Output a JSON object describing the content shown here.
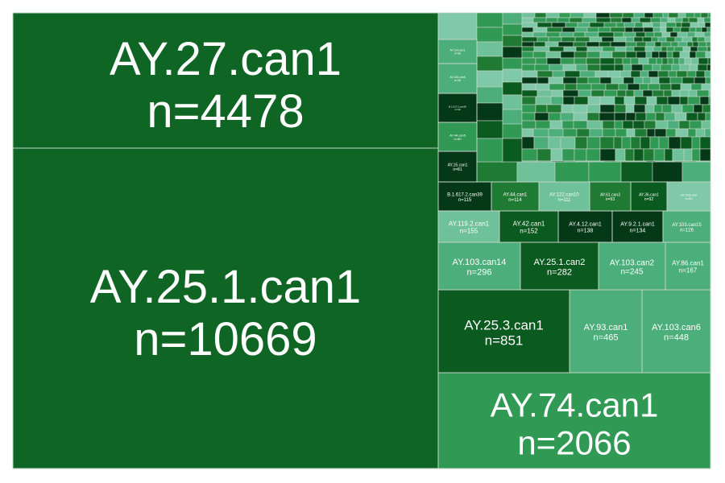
{
  "chart_data": {
    "type": "treemap",
    "colors": {
      "darkest": "#053817",
      "dark": "#0b5a1f",
      "deep": "#0f6524",
      "mid": "#1f7a33",
      "medium": "#309a55",
      "light": "#4cae7a",
      "lighter": "#6ec198",
      "lightest": "#7fc9a8"
    },
    "tiles": [
      {
        "id": "ay-25-1-can1",
        "label": "AY.25.1.can1",
        "n_text": "n=10669",
        "value": 10669
      },
      {
        "id": "ay-27-can1",
        "label": "AY.27.can1",
        "n_text": "n=4478",
        "value": 4478
      },
      {
        "id": "ay-74-can1",
        "label": "AY.74.can1",
        "n_text": "n=2066",
        "value": 2066
      },
      {
        "id": "ay-25-3-can1",
        "label": "AY.25.3.can1",
        "n_text": "n=851",
        "value": 851
      },
      {
        "id": "ay-93-can1",
        "label": "AY.93.can1",
        "n_text": "n=465",
        "value": 465
      },
      {
        "id": "ay-103-can6",
        "label": "AY.103.can6",
        "n_text": "n=448",
        "value": 448
      },
      {
        "id": "ay-103-can14",
        "label": "AY.103.can14",
        "n_text": "n=296",
        "value": 296
      },
      {
        "id": "ay-25-1-can2",
        "label": "AY.25.1.can2",
        "n_text": "n=282",
        "value": 282
      },
      {
        "id": "ay-103-can2",
        "label": "AY.103.can2",
        "n_text": "n=245",
        "value": 245
      },
      {
        "id": "ay-86-can1",
        "label": "AY.86.can1",
        "n_text": "n=167",
        "value": 167
      },
      {
        "id": "ay-119-2-can1",
        "label": "AY.119.2.can1",
        "n_text": "n=155",
        "value": 155
      },
      {
        "id": "ay-42-can1",
        "label": "AY.42.can1",
        "n_text": "n=152",
        "value": 152
      },
      {
        "id": "ay-4-12-can1",
        "label": "AY.4.12.can1",
        "n_text": "n=138",
        "value": 138
      },
      {
        "id": "ay-9-2-1-can1",
        "label": "AY.9.2.1.can1",
        "n_text": "n=134",
        "value": 134
      },
      {
        "id": "ay-103-can15",
        "label": "AY.103.can15",
        "n_text": "n=126",
        "value": 126
      },
      {
        "id": "b-1-617-2-can39",
        "label": "B.1.617.2.can39",
        "n_text": "n=115",
        "value": 115
      },
      {
        "id": "ay-44-can1",
        "label": "AY.44.can1",
        "n_text": "n=114",
        "value": 114
      },
      {
        "id": "ay-122-can10",
        "label": "AY.122.can10",
        "n_text": "n=111",
        "value": 111
      },
      {
        "id": "ay-61-can3",
        "label": "AY.61.can3",
        "n_text": "n=93",
        "value": 93
      },
      {
        "id": "ay-36-can1",
        "label": "AY.36.can1",
        "n_text": "n=92",
        "value": 92
      },
      {
        "id": "ay-103-can-tiny",
        "label": "AY.103.can",
        "n_text": "n=90",
        "value": 90
      },
      {
        "id": "ay-15-can1",
        "label": "AY.15.can1",
        "n_text": "n=81",
        "value": 81
      },
      {
        "id": "ay-44-can5",
        "label": "AY.44.can5",
        "n_text": "n=80",
        "value": 80
      },
      {
        "id": "b-1-617-2-can29",
        "label": "B.1.617.2.can29",
        "n_text": "n=49",
        "value": 49
      },
      {
        "id": "ay-100-can5",
        "label": "AY.100.can5",
        "n_text": "n=36",
        "value": 36
      },
      {
        "id": "ay-114-can1",
        "label": "AY.114.can1",
        "n_text": "n=36",
        "value": 36
      }
    ]
  }
}
